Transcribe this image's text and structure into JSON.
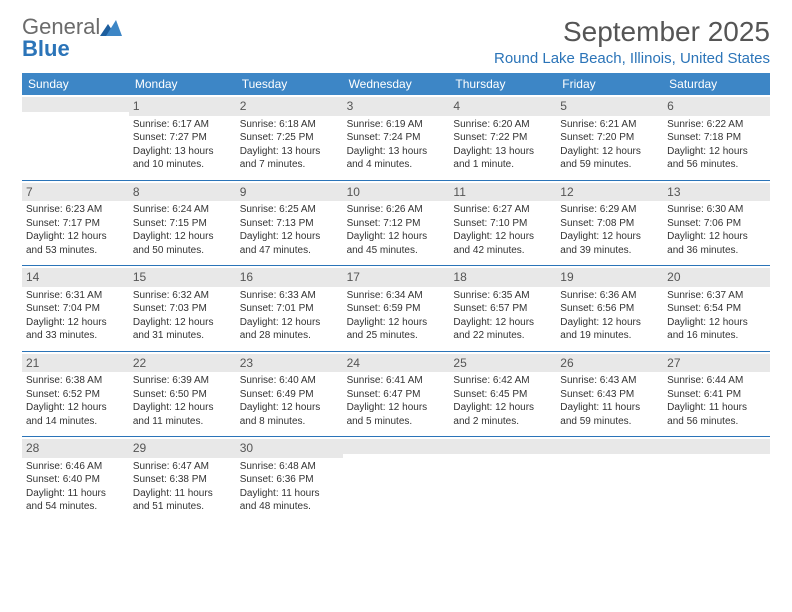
{
  "brand": {
    "part1": "General",
    "part2": "Blue"
  },
  "title": "September 2025",
  "location": "Round Lake Beach, Illinois, United States",
  "colors": {
    "header_bg": "#3d86c6",
    "accent": "#2b74b8",
    "daynum_bg": "#e8e8e8",
    "text": "#333333",
    "muted": "#555555"
  },
  "dow": [
    "Sunday",
    "Monday",
    "Tuesday",
    "Wednesday",
    "Thursday",
    "Friday",
    "Saturday"
  ],
  "weeks": [
    [
      null,
      {
        "n": "1",
        "sunrise": "Sunrise: 6:17 AM",
        "sunset": "Sunset: 7:27 PM",
        "dl": "Daylight: 13 hours and 10 minutes."
      },
      {
        "n": "2",
        "sunrise": "Sunrise: 6:18 AM",
        "sunset": "Sunset: 7:25 PM",
        "dl": "Daylight: 13 hours and 7 minutes."
      },
      {
        "n": "3",
        "sunrise": "Sunrise: 6:19 AM",
        "sunset": "Sunset: 7:24 PM",
        "dl": "Daylight: 13 hours and 4 minutes."
      },
      {
        "n": "4",
        "sunrise": "Sunrise: 6:20 AM",
        "sunset": "Sunset: 7:22 PM",
        "dl": "Daylight: 13 hours and 1 minute."
      },
      {
        "n": "5",
        "sunrise": "Sunrise: 6:21 AM",
        "sunset": "Sunset: 7:20 PM",
        "dl": "Daylight: 12 hours and 59 minutes."
      },
      {
        "n": "6",
        "sunrise": "Sunrise: 6:22 AM",
        "sunset": "Sunset: 7:18 PM",
        "dl": "Daylight: 12 hours and 56 minutes."
      }
    ],
    [
      {
        "n": "7",
        "sunrise": "Sunrise: 6:23 AM",
        "sunset": "Sunset: 7:17 PM",
        "dl": "Daylight: 12 hours and 53 minutes."
      },
      {
        "n": "8",
        "sunrise": "Sunrise: 6:24 AM",
        "sunset": "Sunset: 7:15 PM",
        "dl": "Daylight: 12 hours and 50 minutes."
      },
      {
        "n": "9",
        "sunrise": "Sunrise: 6:25 AM",
        "sunset": "Sunset: 7:13 PM",
        "dl": "Daylight: 12 hours and 47 minutes."
      },
      {
        "n": "10",
        "sunrise": "Sunrise: 6:26 AM",
        "sunset": "Sunset: 7:12 PM",
        "dl": "Daylight: 12 hours and 45 minutes."
      },
      {
        "n": "11",
        "sunrise": "Sunrise: 6:27 AM",
        "sunset": "Sunset: 7:10 PM",
        "dl": "Daylight: 12 hours and 42 minutes."
      },
      {
        "n": "12",
        "sunrise": "Sunrise: 6:29 AM",
        "sunset": "Sunset: 7:08 PM",
        "dl": "Daylight: 12 hours and 39 minutes."
      },
      {
        "n": "13",
        "sunrise": "Sunrise: 6:30 AM",
        "sunset": "Sunset: 7:06 PM",
        "dl": "Daylight: 12 hours and 36 minutes."
      }
    ],
    [
      {
        "n": "14",
        "sunrise": "Sunrise: 6:31 AM",
        "sunset": "Sunset: 7:04 PM",
        "dl": "Daylight: 12 hours and 33 minutes."
      },
      {
        "n": "15",
        "sunrise": "Sunrise: 6:32 AM",
        "sunset": "Sunset: 7:03 PM",
        "dl": "Daylight: 12 hours and 31 minutes."
      },
      {
        "n": "16",
        "sunrise": "Sunrise: 6:33 AM",
        "sunset": "Sunset: 7:01 PM",
        "dl": "Daylight: 12 hours and 28 minutes."
      },
      {
        "n": "17",
        "sunrise": "Sunrise: 6:34 AM",
        "sunset": "Sunset: 6:59 PM",
        "dl": "Daylight: 12 hours and 25 minutes."
      },
      {
        "n": "18",
        "sunrise": "Sunrise: 6:35 AM",
        "sunset": "Sunset: 6:57 PM",
        "dl": "Daylight: 12 hours and 22 minutes."
      },
      {
        "n": "19",
        "sunrise": "Sunrise: 6:36 AM",
        "sunset": "Sunset: 6:56 PM",
        "dl": "Daylight: 12 hours and 19 minutes."
      },
      {
        "n": "20",
        "sunrise": "Sunrise: 6:37 AM",
        "sunset": "Sunset: 6:54 PM",
        "dl": "Daylight: 12 hours and 16 minutes."
      }
    ],
    [
      {
        "n": "21",
        "sunrise": "Sunrise: 6:38 AM",
        "sunset": "Sunset: 6:52 PM",
        "dl": "Daylight: 12 hours and 14 minutes."
      },
      {
        "n": "22",
        "sunrise": "Sunrise: 6:39 AM",
        "sunset": "Sunset: 6:50 PM",
        "dl": "Daylight: 12 hours and 11 minutes."
      },
      {
        "n": "23",
        "sunrise": "Sunrise: 6:40 AM",
        "sunset": "Sunset: 6:49 PM",
        "dl": "Daylight: 12 hours and 8 minutes."
      },
      {
        "n": "24",
        "sunrise": "Sunrise: 6:41 AM",
        "sunset": "Sunset: 6:47 PM",
        "dl": "Daylight: 12 hours and 5 minutes."
      },
      {
        "n": "25",
        "sunrise": "Sunrise: 6:42 AM",
        "sunset": "Sunset: 6:45 PM",
        "dl": "Daylight: 12 hours and 2 minutes."
      },
      {
        "n": "26",
        "sunrise": "Sunrise: 6:43 AM",
        "sunset": "Sunset: 6:43 PM",
        "dl": "Daylight: 11 hours and 59 minutes."
      },
      {
        "n": "27",
        "sunrise": "Sunrise: 6:44 AM",
        "sunset": "Sunset: 6:41 PM",
        "dl": "Daylight: 11 hours and 56 minutes."
      }
    ],
    [
      {
        "n": "28",
        "sunrise": "Sunrise: 6:46 AM",
        "sunset": "Sunset: 6:40 PM",
        "dl": "Daylight: 11 hours and 54 minutes."
      },
      {
        "n": "29",
        "sunrise": "Sunrise: 6:47 AM",
        "sunset": "Sunset: 6:38 PM",
        "dl": "Daylight: 11 hours and 51 minutes."
      },
      {
        "n": "30",
        "sunrise": "Sunrise: 6:48 AM",
        "sunset": "Sunset: 6:36 PM",
        "dl": "Daylight: 11 hours and 48 minutes."
      },
      null,
      null,
      null,
      null
    ]
  ]
}
